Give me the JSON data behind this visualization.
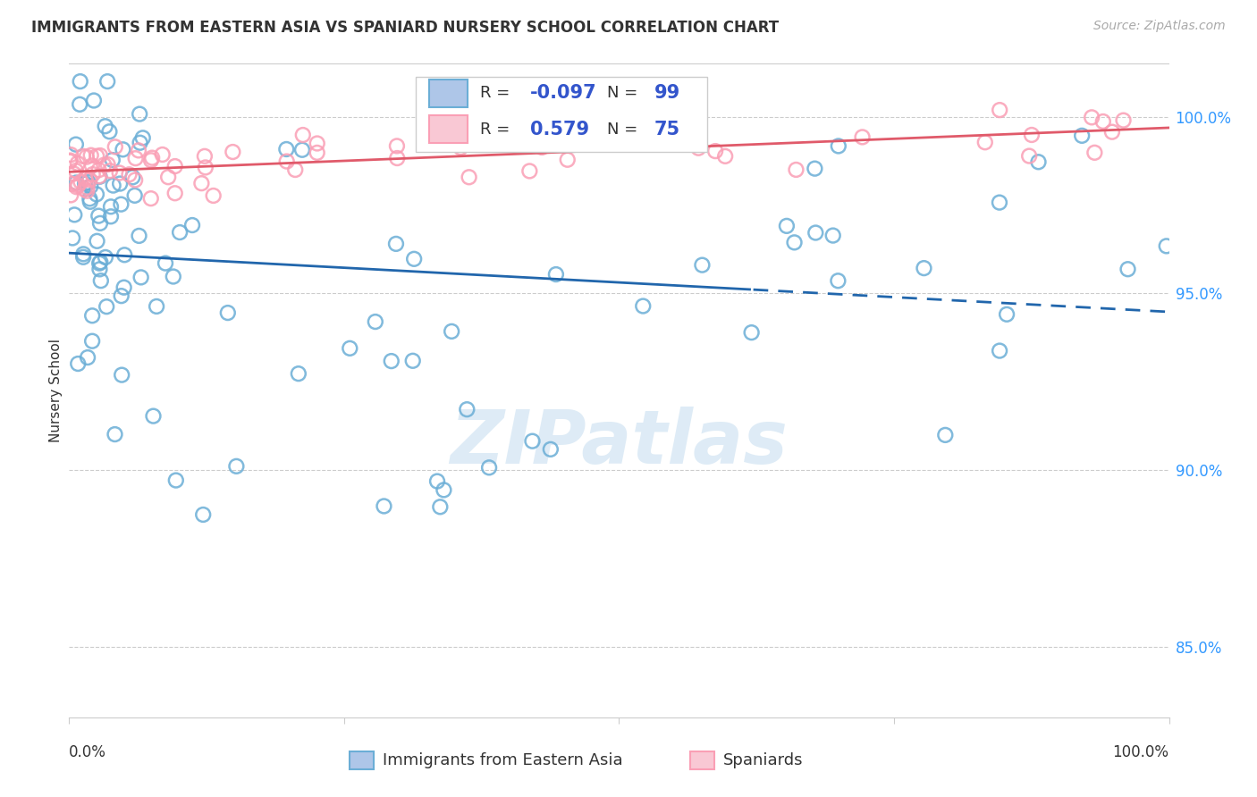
{
  "title": "IMMIGRANTS FROM EASTERN ASIA VS SPANIARD NURSERY SCHOOL CORRELATION CHART",
  "source": "Source: ZipAtlas.com",
  "ylabel": "Nursery School",
  "xlim": [
    0.0,
    1.0
  ],
  "ylim": [
    83.0,
    101.5
  ],
  "legend_label1": "Immigrants from Eastern Asia",
  "legend_label2": "Spaniards",
  "R1": -0.097,
  "N1": 99,
  "R2": 0.579,
  "N2": 75,
  "blue_color": "#6baed6",
  "pink_color": "#fa9fb5",
  "blue_line_color": "#2166ac",
  "pink_line_color": "#e05a6a",
  "blue_fc": "#aec6e8",
  "pink_fc": "#f9c8d4",
  "watermark": "ZIPatlas",
  "watermark_color": "#c8dff0",
  "grid_color": "#cccccc",
  "ytick_vals": [
    85.0,
    90.0,
    95.0,
    100.0
  ],
  "ytick_labels": [
    "85.0%",
    "90.0%",
    "95.0%",
    "100.0%"
  ],
  "title_fontsize": 12,
  "source_fontsize": 10,
  "tick_fontsize": 12,
  "legend_fontsize": 13,
  "ylabel_fontsize": 11
}
